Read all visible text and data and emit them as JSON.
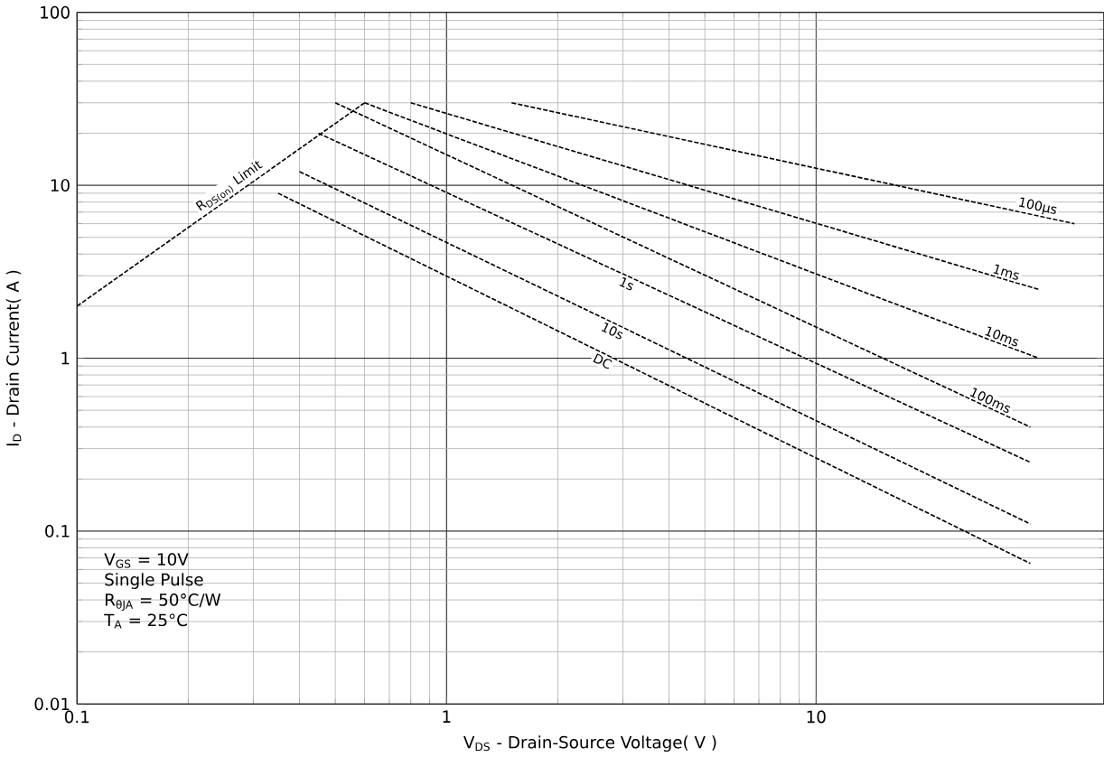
{
  "chart_data": {
    "type": "line",
    "xlabel": "V$_{DS}$ - Drain-Source Voltage( V )",
    "ylabel": "I$_{D}$ - Drain Current( A )",
    "log": "xy",
    "grid": true,
    "line_style": "dashed",
    "marker": "none",
    "xlim": [
      0.1,
      60
    ],
    "ylim": [
      0.01,
      100
    ],
    "xticks": [
      0.1,
      1,
      10
    ],
    "yticks": [
      0.01,
      0.1,
      1,
      10,
      100
    ],
    "series": [
      {
        "name": "R$_{DS(on)}$ Limit",
        "color": "#000000",
        "x": [
          0.1,
          0.6
        ],
        "values": [
          2,
          30
        ]
      },
      {
        "name": "100µs",
        "color": "#000000",
        "x": [
          1.5,
          50
        ],
        "values": [
          30,
          6
        ]
      },
      {
        "name": "1ms",
        "color": "#000000",
        "x": [
          0.8,
          40
        ],
        "values": [
          30,
          2.5
        ]
      },
      {
        "name": "10ms",
        "color": "#000000",
        "x": [
          0.6,
          40
        ],
        "values": [
          30,
          1.0
        ]
      },
      {
        "name": "100ms",
        "color": "#000000",
        "x": [
          0.5,
          38
        ],
        "values": [
          30,
          0.4
        ]
      },
      {
        "name": "1s",
        "color": "#000000",
        "x": [
          0.45,
          38
        ],
        "values": [
          20,
          0.25
        ]
      },
      {
        "name": "10s",
        "color": "#000000",
        "x": [
          0.4,
          38
        ],
        "values": [
          12,
          0.11
        ]
      },
      {
        "name": "DC",
        "color": "#000000",
        "x": [
          0.35,
          38
        ],
        "values": [
          9,
          0.065
        ]
      }
    ],
    "annotations": [
      "V$_{GS}$ = 10V",
      "Single Pulse",
      "R$_{θJA}$ = 50°C/W",
      "T$_{A}$ = 25°C"
    ]
  }
}
